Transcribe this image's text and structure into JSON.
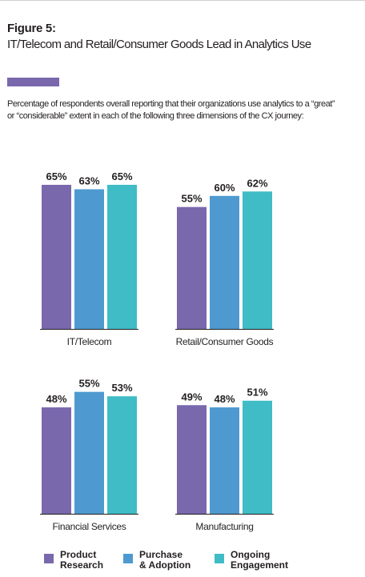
{
  "figure_label": "Figure 5:",
  "title": "IT/Telecom and Retail/Consumer Goods Lead in Analytics Use",
  "subtitle": "Percentage of respondents overall reporting that their organizations use analytics to a “great” or “considerable” extent in each of the following three dimensions of the CX journey:",
  "colors": {
    "accent": "#7a68ad",
    "product_research": "#7a68ad",
    "purchase_adoption": "#4e9ad0",
    "ongoing_engagement": "#3fbcc6"
  },
  "legend": [
    {
      "label": "Product\nResearch",
      "color": "#7a68ad"
    },
    {
      "label": "Purchase\n& Adoption",
      "color": "#4e9ad0"
    },
    {
      "label": "Ongoing\nEngagement",
      "color": "#3fbcc6"
    }
  ],
  "chart_data": [
    {
      "type": "bar",
      "title": "IT/Telecom",
      "unit": "%",
      "categories": [
        "Product Research",
        "Purchase & Adoption",
        "Ongoing Engagement"
      ],
      "values": [
        65,
        63,
        65
      ],
      "labels": [
        "65%",
        "63%",
        "65%"
      ],
      "ylim": [
        0,
        90
      ]
    },
    {
      "type": "bar",
      "title": "Retail/Consumer Goods",
      "unit": "%",
      "categories": [
        "Product Research",
        "Purchase & Adoption",
        "Ongoing Engagement"
      ],
      "values": [
        55,
        60,
        62
      ],
      "labels": [
        "55%",
        "60%",
        "62%"
      ],
      "ylim": [
        0,
        90
      ]
    },
    {
      "type": "bar",
      "title": "Financial Services",
      "unit": "%",
      "categories": [
        "Product Research",
        "Purchase & Adoption",
        "Ongoing Engagement"
      ],
      "values": [
        48,
        55,
        53
      ],
      "labels": [
        "48%",
        "55%",
        "53%"
      ],
      "ylim": [
        0,
        90
      ]
    },
    {
      "type": "bar",
      "title": "Manufacturing",
      "unit": "%",
      "categories": [
        "Product Research",
        "Purchase & Adoption",
        "Ongoing Engagement"
      ],
      "values": [
        49,
        48,
        51
      ],
      "labels": [
        "49%",
        "48%",
        "51%"
      ],
      "ylim": [
        0,
        90
      ]
    }
  ]
}
